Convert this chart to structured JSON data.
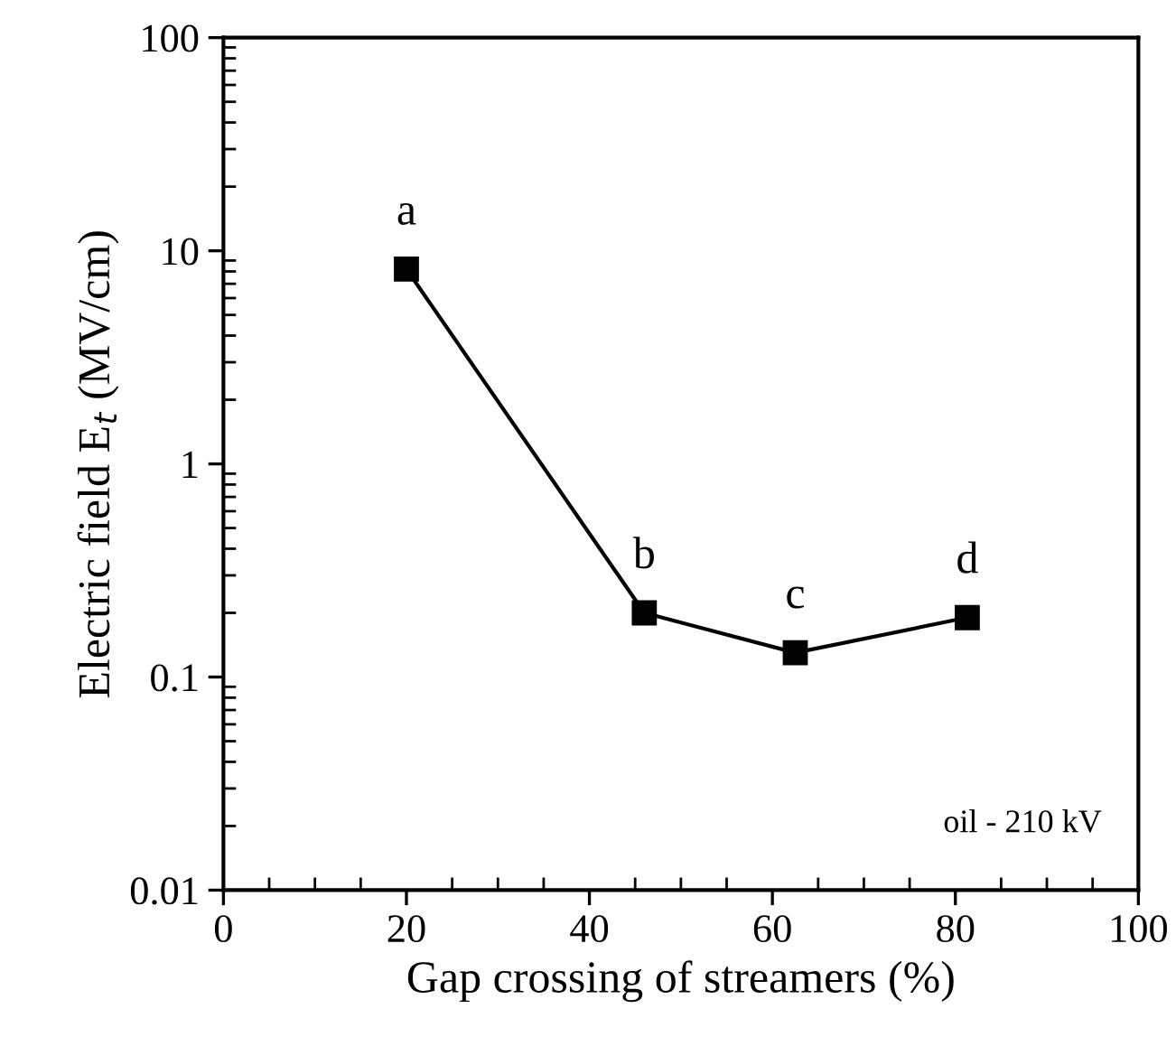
{
  "chart_data": {
    "type": "line",
    "xlabel": "Gap crossing of streamers (%)",
    "ylabel": "Electric field E$_{t}$ (MV/cm)",
    "x": [
      20,
      46,
      62.5,
      81.3
    ],
    "series": [
      {
        "color": "#000000",
        "values": [
          8.2,
          0.2,
          0.13,
          0.19
        ]
      }
    ],
    "marker": "square",
    "line_style": "solid",
    "log": "y",
    "grid": false,
    "xlim": [
      0,
      100
    ],
    "xticks": [
      0,
      20,
      40,
      60,
      80,
      100
    ],
    "ylim": [
      0.01,
      100
    ],
    "yticks": [
      0.01,
      0.1,
      1,
      10,
      100
    ],
    "annotations": [
      {
        "text": "a",
        "x": 20,
        "y": 8.2
      },
      {
        "text": "b",
        "x": 46,
        "y": 0.2
      },
      {
        "text": "c",
        "x": 62.5,
        "y": 0.13
      },
      {
        "text": "d",
        "x": 81.3,
        "y": 0.19
      },
      "oil - 210 kV"
    ]
  }
}
